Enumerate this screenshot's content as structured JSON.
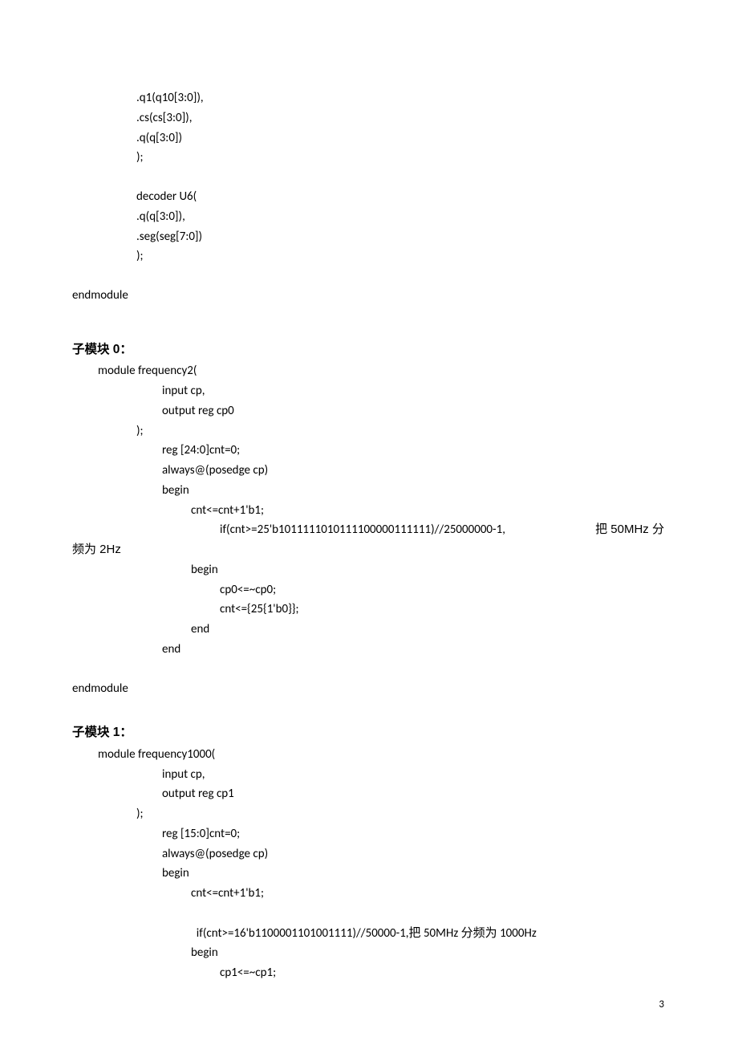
{
  "top_block": {
    "lines": [
      ".q1(q10[3:0]),",
      ".cs(cs[3:0]),",
      ".q(q[3:0])",
      ");"
    ],
    "decoder": [
      "decoder U6(",
      ".q(q[3:0]),",
      ".seg(seg[7:0])",
      ");"
    ],
    "endmodule": "endmodule"
  },
  "module0": {
    "heading": "子模块 0：",
    "l1": "module frequency2(",
    "l2": "input cp,",
    "l3": "output reg cp0",
    "l4": ");",
    "l5": "reg [24:0]cnt=0;",
    "l6": "always@(posedge cp)",
    "l7": "begin",
    "l8": "cnt<=cnt+1'b1;",
    "l9_left": "if(cnt>=25'b1011111010111100000111111)//25000000-1,",
    "l9_right_cn1": "把",
    "l9_right_tx": " 50MHz ",
    "l9_right_cn2": "分",
    "l10_cn": "频为 2Hz",
    "l11": "begin",
    "l12": "cp0<=~cp0;",
    "l13": "cnt<={25{1'b0}};",
    "l14": "end",
    "l15": "end",
    "endmodule": "endmodule"
  },
  "module1": {
    "heading": "子模块 1：",
    "l1": "module frequency1000(",
    "l2": "input cp,",
    "l3": "output reg cp1",
    "l4": ");",
    "l5": "reg [15:0]cnt=0;",
    "l6": "always@(posedge cp)",
    "l7": "begin",
    "l8": "cnt<=cnt+1'b1;",
    "l9a": "if(cnt>=16'b1100001101001111)//50000-1,",
    "l9b_cn": "把",
    "l9c": " 50MHz ",
    "l9d_cn": "分频为",
    "l9e": " 1000Hz",
    "l10": "begin",
    "l11": "cp1<=~cp1;"
  },
  "page_number": "3"
}
